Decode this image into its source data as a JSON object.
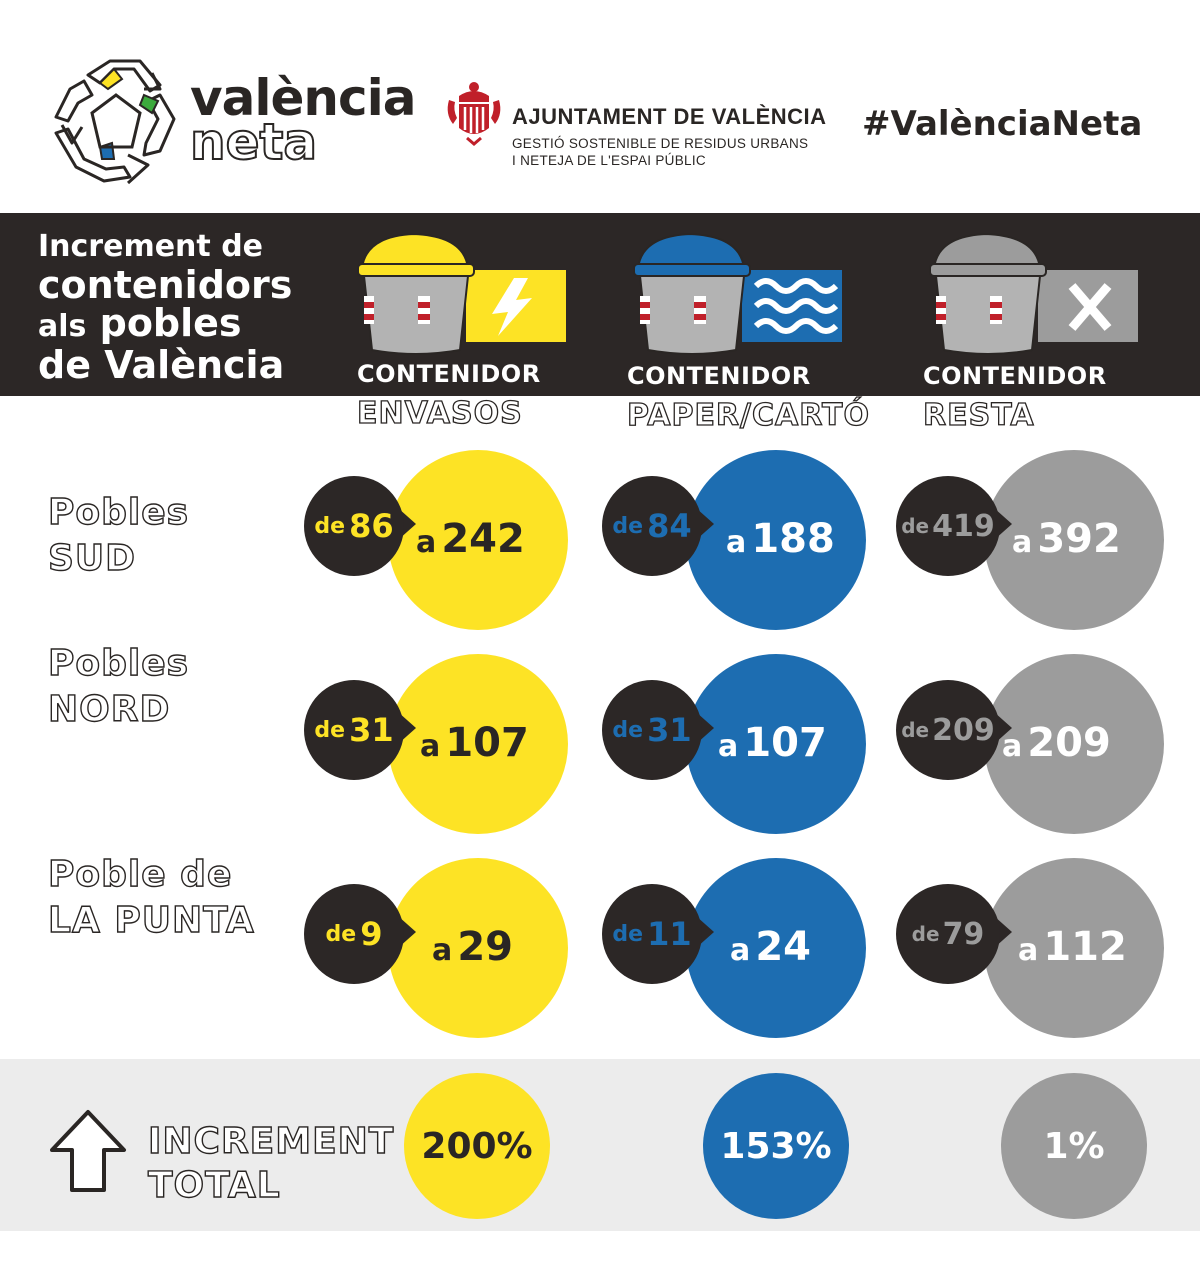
{
  "header": {
    "brand_line1": "valència",
    "brand_line2": "neta",
    "org_title": "AJUNTAMENT DE VALÈNCIA",
    "org_sub1": "GESTIÓ SOSTENIBLE DE RESIDUS URBANS",
    "org_sub2": "I NETEJA DE L'ESPAI PÚBLIC",
    "hashtag": "#ValènciaNeta"
  },
  "band": {
    "title_line1": "Increment de",
    "title_line2": "contenidors",
    "title_line3a": "als",
    "title_line3b": "pobles",
    "title_line4": "de València"
  },
  "containers": [
    {
      "label": "CONTENIDOR",
      "type": "ENVASOS",
      "lid_color": "#fde325",
      "icon": "lightning-icon"
    },
    {
      "label": "CONTENIDOR",
      "type": "PAPER/CARTÓ",
      "lid_color": "#1d6db1",
      "icon": "waves-icon"
    },
    {
      "label": "CONTENIDOR",
      "type": "RESTA",
      "lid_color": "#9c9c9c",
      "icon": "x-icon"
    }
  ],
  "rows": [
    {
      "label1": "Pobles",
      "label2": "SUD",
      "cells": [
        {
          "de": "de",
          "from": "86",
          "a": "a",
          "to": "242"
        },
        {
          "de": "de",
          "from": "84",
          "a": "a",
          "to": "188"
        },
        {
          "de": "de",
          "from": "419",
          "a": "a",
          "to": "392"
        }
      ]
    },
    {
      "label1": "Pobles",
      "label2": "NORD",
      "cells": [
        {
          "de": "de",
          "from": "31",
          "a": "a",
          "to": "107"
        },
        {
          "de": "de",
          "from": "31",
          "a": "a",
          "to": "107"
        },
        {
          "de": "de",
          "from": "209",
          "a": "a",
          "to": "209"
        }
      ]
    },
    {
      "label1": "Poble de",
      "label2": "LA PUNTA",
      "cells": [
        {
          "de": "de",
          "from": "9",
          "a": "a",
          "to": "29"
        },
        {
          "de": "de",
          "from": "11",
          "a": "a",
          "to": "24"
        },
        {
          "de": "de",
          "from": "79",
          "a": "a",
          "to": "112"
        }
      ]
    }
  ],
  "total": {
    "label1": "INCREMENT",
    "label2": "TOTAL",
    "values": [
      "200%",
      "153%",
      "1%"
    ]
  },
  "colors": {
    "yellow": "#fde325",
    "blue": "#1d6db1",
    "grey": "#9c9c9c",
    "dark": "#2c2726"
  }
}
